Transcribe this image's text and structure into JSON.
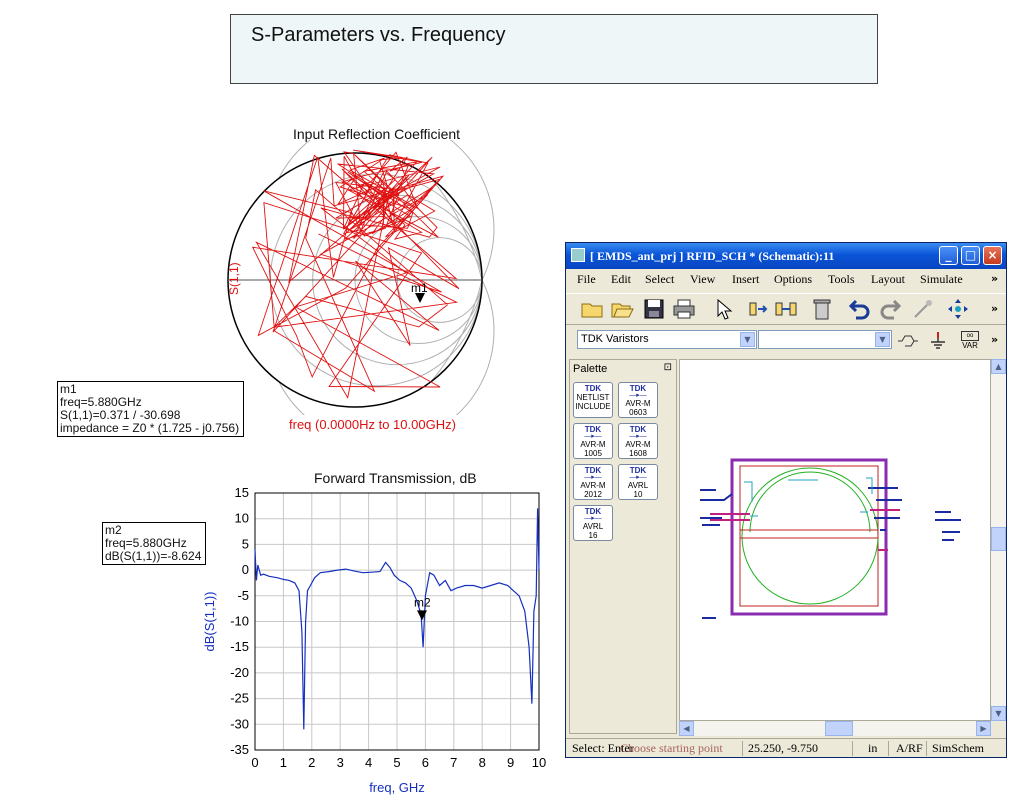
{
  "page_title": "S-Parameters vs. Frequency",
  "smith": {
    "title": "Input Reflection Coefficient",
    "ylabel": "S(1,1)",
    "xlabel": "freq (0.0000Hz to 10.00GHz)",
    "marker_label": "m1",
    "trace_color": "#e01010"
  },
  "marker1": {
    "name": "m1",
    "line1": "freq=5.880GHz",
    "line2": "S(1,1)=0.371 / -30.698",
    "line3": "impedance = Z0 * (1.725 - j0.756)"
  },
  "marker2": {
    "name": "m2",
    "line1": "freq=5.880GHz",
    "line2": "dB(S(1,1))=-8.624"
  },
  "chart_data": {
    "type": "line",
    "title": "Forward Transmission, dB",
    "xlabel": "freq, GHz",
    "ylabel": "dB(S(1,1))",
    "xlim": [
      0,
      10
    ],
    "ylim": [
      -35,
      15
    ],
    "x_ticks": [
      0,
      1,
      2,
      3,
      4,
      5,
      6,
      7,
      8,
      9,
      10
    ],
    "y_ticks": [
      15,
      10,
      5,
      0,
      -5,
      -10,
      -15,
      -20,
      -25,
      -30,
      -35
    ],
    "grid": true,
    "series": [
      {
        "color": "#1530c0",
        "x": [
          0,
          0.05,
          0.1,
          0.2,
          0.3,
          0.5,
          0.8,
          1.0,
          1.2,
          1.4,
          1.55,
          1.65,
          1.72,
          1.78,
          1.85,
          1.95,
          2.1,
          2.3,
          2.6,
          2.9,
          3.2,
          3.5,
          3.8,
          4.1,
          4.4,
          4.6,
          4.75,
          4.9,
          5.1,
          5.3,
          5.5,
          5.7,
          5.85,
          5.92,
          6.0,
          6.15,
          6.3,
          6.5,
          6.7,
          6.9,
          7.1,
          7.4,
          7.7,
          8.0,
          8.3,
          8.6,
          8.9,
          9.1,
          9.3,
          9.5,
          9.65,
          9.75,
          9.82,
          9.9,
          9.95,
          10.0
        ],
        "y": [
          4,
          -2,
          1,
          -1,
          -0.8,
          -1.2,
          -1.5,
          -1.8,
          -2,
          -2.5,
          -4,
          -12,
          -31,
          -10,
          -4,
          -3,
          -1.5,
          -0.5,
          -0.3,
          0,
          0.2,
          -0.2,
          -0.5,
          -0.4,
          -0.3,
          1.5,
          0.5,
          -1,
          -2,
          -2.5,
          -3.5,
          -6,
          -8.624,
          -15,
          -5,
          -0.5,
          -1,
          -3,
          -2,
          -4,
          -3.5,
          -3,
          -3,
          -3.5,
          -3,
          -2.5,
          -3,
          -4,
          -5,
          -8,
          -15,
          -26,
          -8,
          -5,
          12,
          0
        ]
      }
    ]
  },
  "ads": {
    "window_title": "[ EMDS_ant_prj ] RFID_SCH * (Schematic):11",
    "btn_minimize": "_",
    "btn_maximize": "□",
    "btn_close": "×",
    "menus": [
      "File",
      "Edit",
      "Select",
      "View",
      "Insert",
      "Options",
      "Tools",
      "Layout",
      "Simulate"
    ],
    "overflow": "»",
    "library_combo": "TDK Varistors",
    "component_combo": "",
    "var_label": "VAR",
    "palette_title": "Palette",
    "palette_pin": "⊡",
    "palette_items": [
      {
        "top": "TDK",
        "line1": "NETLIST",
        "line2": "INCLUDE"
      },
      {
        "top": "TDK",
        "line1": "AVR-M",
        "line2": "0603"
      },
      {
        "top": "TDK",
        "line1": "AVR-M",
        "line2": "1005"
      },
      {
        "top": "TDK",
        "line1": "AVR-M",
        "line2": "1608"
      },
      {
        "top": "TDK",
        "line1": "AVR-M",
        "line2": "2012"
      },
      {
        "top": "TDK",
        "line1": "AVRL",
        "line2": "10"
      },
      {
        "top": "TDK",
        "line1": "AVRL",
        "line2": "16"
      }
    ],
    "status_select": "Select: Enter",
    "status_overlay": "Choose starting point",
    "status_coords": "25.250, -9.750",
    "status_units": "in",
    "status_mode": "A/RF",
    "status_sim": "SimSchem"
  }
}
